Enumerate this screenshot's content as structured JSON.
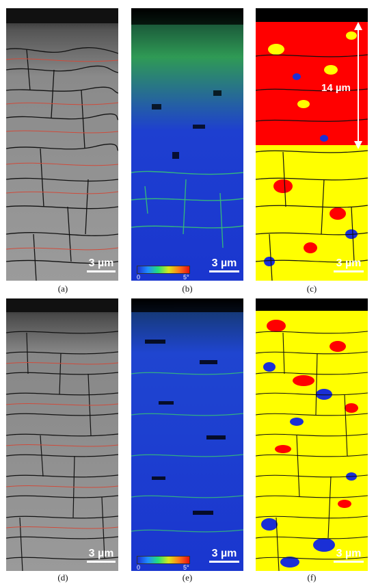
{
  "panels": [
    {
      "id": "a",
      "caption": "(a)",
      "type": "band-contrast",
      "scale_label": "3 µm"
    },
    {
      "id": "b",
      "caption": "(b)",
      "type": "misorientation",
      "scale_label": "3 µm",
      "colorbar": {
        "min": "0",
        "max": "5°"
      }
    },
    {
      "id": "c",
      "caption": "(c)",
      "type": "phase",
      "scale_label": "3 µm",
      "depth_label": "14 µm"
    },
    {
      "id": "d",
      "caption": "(d)",
      "type": "band-contrast",
      "scale_label": "3 µm"
    },
    {
      "id": "e",
      "caption": "(e)",
      "type": "misorientation",
      "scale_label": "3 µm",
      "colorbar": {
        "min": "0",
        "max": "5°"
      }
    },
    {
      "id": "f",
      "caption": "(f)",
      "type": "phase",
      "scale_label": "3 µm"
    }
  ],
  "colors": {
    "band_contrast_bg": "#8c8c8c",
    "high_angle_boundary": "#111111",
    "low_angle_boundary": "#d04a3a",
    "kam_low": "#1a2fd6",
    "kam_high": "#e81010",
    "phase_yellow": "#ffff00",
    "phase_red": "#ff0000",
    "phase_blue": "#1a2fd6"
  }
}
